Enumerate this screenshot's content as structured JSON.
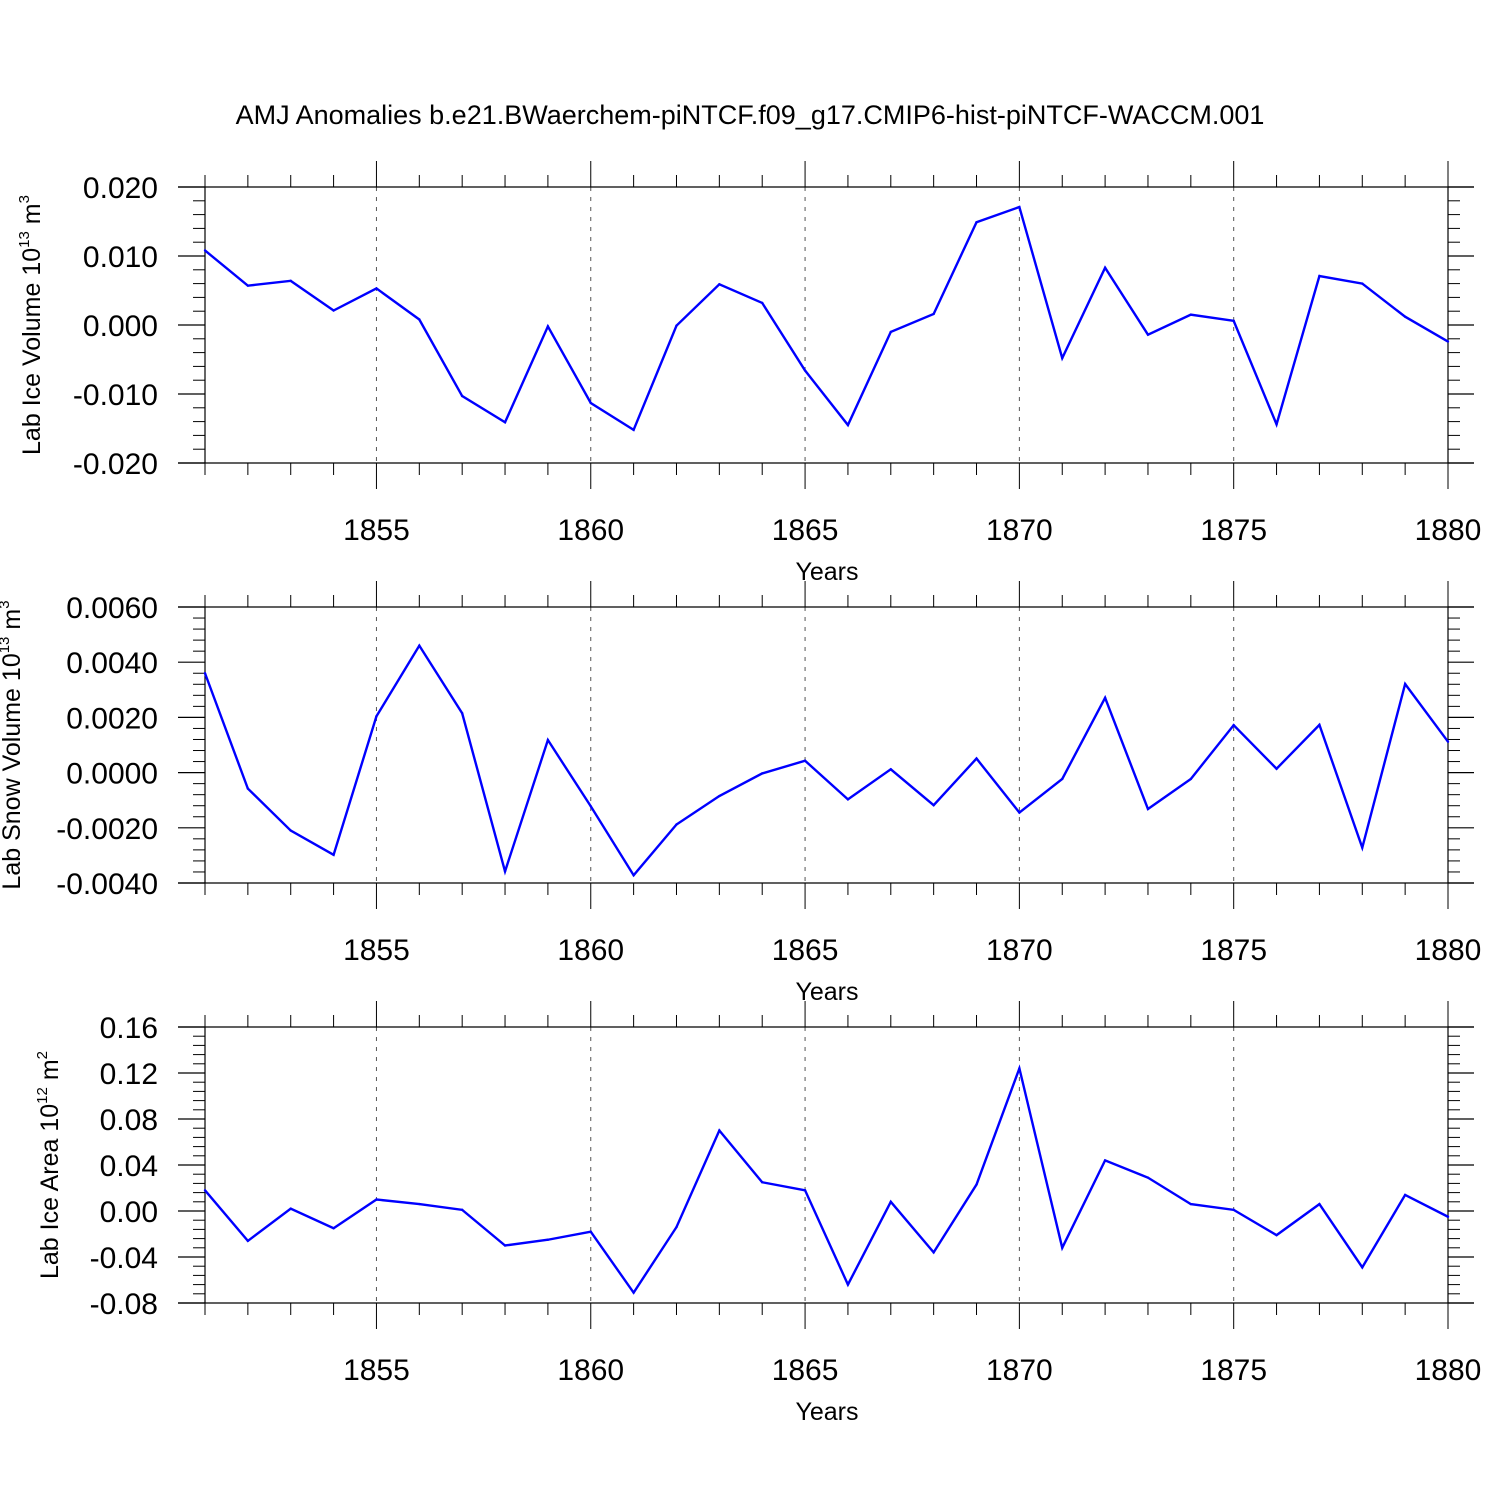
{
  "title": "AMJ Anomalies b.e21.BWaerchem-piNTCF.f09_g17.CMIP6-hist-piNTCF-WACCM.001",
  "colors": {
    "line": "#0000ff",
    "axis": "#000000",
    "grid": "#555555"
  },
  "chart_data": [
    {
      "type": "line",
      "ylabel": "Lab Ice Volume 10",
      "ylabel_exp": "13",
      "ylabel_unit": "m",
      "ylabel_unit_exp": "3",
      "xlabel": "Years",
      "xlim": [
        1851,
        1880
      ],
      "ylim": [
        -0.02,
        0.02
      ],
      "xticks": [
        "1855",
        "1860",
        "1865",
        "1870",
        "1875",
        "1880"
      ],
      "yticks": [
        {
          "value": 0.02,
          "label": "0.020"
        },
        {
          "value": 0.01,
          "label": "0.010"
        },
        {
          "value": 0.0,
          "label": "0.000"
        },
        {
          "value": -0.01,
          "label": "-0.010"
        },
        {
          "value": -0.02,
          "label": "-0.020"
        }
      ],
      "grid": "dashed vertical at major x ticks",
      "x": [
        1851,
        1852,
        1853,
        1854,
        1855,
        1856,
        1857,
        1858,
        1859,
        1860,
        1861,
        1862,
        1863,
        1864,
        1865,
        1866,
        1867,
        1868,
        1869,
        1870,
        1871,
        1872,
        1873,
        1874,
        1875,
        1876,
        1877,
        1878,
        1879,
        1880
      ],
      "series": [
        {
          "values": [
            0.0108,
            0.0057,
            0.0064,
            0.0021,
            0.0053,
            0.0008,
            -0.0103,
            -0.0141,
            -0.0002,
            -0.0113,
            -0.0152,
            -0.0001,
            0.0059,
            0.0032,
            -0.0066,
            -0.0145,
            -0.001,
            0.0016,
            0.0149,
            0.0171,
            -0.0048,
            0.0083,
            -0.0014,
            0.0015,
            0.0006,
            -0.0144,
            0.0071,
            0.006,
            0.0012,
            -0.0024
          ]
        }
      ]
    },
    {
      "type": "line",
      "ylabel": "Lab Snow Volume 10",
      "ylabel_exp": "13",
      "ylabel_unit": "m",
      "ylabel_unit_exp": "3",
      "xlabel": "Years",
      "xlim": [
        1851,
        1880
      ],
      "ylim": [
        -0.004,
        0.006
      ],
      "xticks": [
        "1855",
        "1860",
        "1865",
        "1870",
        "1875",
        "1880"
      ],
      "yticks": [
        {
          "value": 0.006,
          "label": "0.0060"
        },
        {
          "value": 0.004,
          "label": "0.0040"
        },
        {
          "value": 0.002,
          "label": "0.0020"
        },
        {
          "value": 0.0,
          "label": "0.0000"
        },
        {
          "value": -0.002,
          "label": "-0.0020"
        },
        {
          "value": -0.004,
          "label": "-0.0040"
        }
      ],
      "grid": "dashed vertical at major x ticks",
      "x": [
        1851,
        1852,
        1853,
        1854,
        1855,
        1856,
        1857,
        1858,
        1859,
        1860,
        1861,
        1862,
        1863,
        1864,
        1865,
        1866,
        1867,
        1868,
        1869,
        1870,
        1871,
        1872,
        1873,
        1874,
        1875,
        1876,
        1877,
        1878,
        1879,
        1880
      ],
      "series": [
        {
          "values": [
            0.0036,
            -0.00058,
            -0.0021,
            -0.00298,
            0.00204,
            0.0046,
            0.00215,
            -0.00358,
            0.00118,
            -0.00122,
            -0.00372,
            -0.00188,
            -0.00085,
            -3e-05,
            0.00043,
            -0.00097,
            0.00012,
            -0.00118,
            0.00051,
            -0.00145,
            -0.00023,
            0.00271,
            -0.00132,
            -0.00023,
            0.00172,
            0.00014,
            0.00173,
            -0.00272,
            0.00321,
            0.00112
          ]
        }
      ]
    },
    {
      "type": "line",
      "ylabel": "Lab Ice Area 10",
      "ylabel_exp": "12",
      "ylabel_unit": "m",
      "ylabel_unit_exp": "2",
      "xlabel": "Years",
      "xlim": [
        1851,
        1880
      ],
      "ylim": [
        -0.08,
        0.16
      ],
      "xticks": [
        "1855",
        "1860",
        "1865",
        "1870",
        "1875",
        "1880"
      ],
      "yticks": [
        {
          "value": 0.16,
          "label": "0.16"
        },
        {
          "value": 0.12,
          "label": "0.12"
        },
        {
          "value": 0.08,
          "label": "0.08"
        },
        {
          "value": 0.04,
          "label": "0.04"
        },
        {
          "value": 0.0,
          "label": "0.00"
        },
        {
          "value": -0.04,
          "label": "-0.04"
        },
        {
          "value": -0.08,
          "label": "-0.08"
        }
      ],
      "grid": "dashed vertical at major x ticks",
      "x": [
        1851,
        1852,
        1853,
        1854,
        1855,
        1856,
        1857,
        1858,
        1859,
        1860,
        1861,
        1862,
        1863,
        1864,
        1865,
        1866,
        1867,
        1868,
        1869,
        1870,
        1871,
        1872,
        1873,
        1874,
        1875,
        1876,
        1877,
        1878,
        1879,
        1880
      ],
      "series": [
        {
          "values": [
            0.018,
            -0.026,
            0.002,
            -0.015,
            0.01,
            0.006,
            0.001,
            -0.03,
            -0.025,
            -0.018,
            -0.071,
            -0.014,
            0.07,
            0.025,
            0.018,
            -0.064,
            0.008,
            -0.036,
            0.023,
            0.124,
            -0.032,
            0.044,
            0.029,
            0.006,
            0.001,
            -0.021,
            0.006,
            -0.049,
            0.014,
            -0.005
          ]
        }
      ]
    }
  ]
}
